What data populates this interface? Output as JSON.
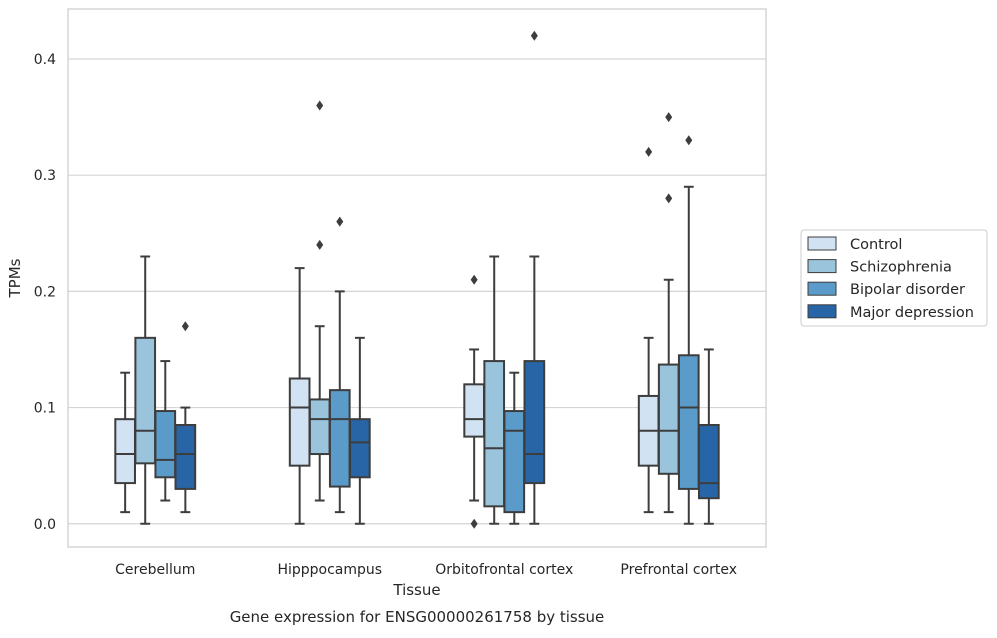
{
  "chart_data": {
    "type": "box",
    "title": "",
    "caption": "Gene expression for ENSG00000261758 by tissue",
    "xlabel": "Tissue",
    "ylabel": "TPMs",
    "ylim": [
      -0.02,
      0.443
    ],
    "yticks": [
      0.0,
      0.1,
      0.2,
      0.3,
      0.4
    ],
    "ytick_labels": [
      "0.0",
      "0.1",
      "0.2",
      "0.3",
      "0.4"
    ],
    "grid": "horizontal",
    "legend_position": "right",
    "categories": [
      "Cerebellum",
      "Hipppocampus",
      "Orbitofrontal cortex",
      "Prefrontal cortex"
    ],
    "series": [
      {
        "name": "Control",
        "color": "#d1e2f2",
        "boxes": [
          {
            "whislo": 0.01,
            "q1": 0.035,
            "med": 0.06,
            "q3": 0.09,
            "whishi": 0.13,
            "fliers": []
          },
          {
            "whislo": 0.0,
            "q1": 0.05,
            "med": 0.1,
            "q3": 0.125,
            "whishi": 0.22,
            "fliers": []
          },
          {
            "whislo": 0.02,
            "q1": 0.075,
            "med": 0.09,
            "q3": 0.12,
            "whishi": 0.15,
            "fliers": [
              0.0,
              0.21
            ]
          },
          {
            "whislo": 0.01,
            "q1": 0.05,
            "med": 0.08,
            "q3": 0.11,
            "whishi": 0.16,
            "fliers": [
              0.32
            ]
          }
        ]
      },
      {
        "name": "Schizophrenia",
        "color": "#9ac3dc",
        "boxes": [
          {
            "whislo": 0.0,
            "q1": 0.052,
            "med": 0.08,
            "q3": 0.16,
            "whishi": 0.23,
            "fliers": []
          },
          {
            "whislo": 0.02,
            "q1": 0.06,
            "med": 0.09,
            "q3": 0.107,
            "whishi": 0.17,
            "fliers": [
              0.24,
              0.36
            ]
          },
          {
            "whislo": 0.0,
            "q1": 0.015,
            "med": 0.065,
            "q3": 0.14,
            "whishi": 0.23,
            "fliers": []
          },
          {
            "whislo": 0.01,
            "q1": 0.043,
            "med": 0.08,
            "q3": 0.137,
            "whishi": 0.21,
            "fliers": [
              0.28,
              0.35
            ]
          }
        ]
      },
      {
        "name": "Bipolar disorder",
        "color": "#5a9bc9",
        "boxes": [
          {
            "whislo": 0.02,
            "q1": 0.04,
            "med": 0.055,
            "q3": 0.097,
            "whishi": 0.14,
            "fliers": []
          },
          {
            "whislo": 0.01,
            "q1": 0.032,
            "med": 0.09,
            "q3": 0.115,
            "whishi": 0.2,
            "fliers": [
              0.26
            ]
          },
          {
            "whislo": 0.0,
            "q1": 0.01,
            "med": 0.08,
            "q3": 0.097,
            "whishi": 0.13,
            "fliers": []
          },
          {
            "whislo": 0.0,
            "q1": 0.03,
            "med": 0.1,
            "q3": 0.145,
            "whishi": 0.29,
            "fliers": [
              0.33
            ]
          }
        ]
      },
      {
        "name": "Major depression",
        "color": "#2765a6",
        "boxes": [
          {
            "whislo": 0.01,
            "q1": 0.03,
            "med": 0.06,
            "q3": 0.085,
            "whishi": 0.1,
            "fliers": [
              0.17
            ]
          },
          {
            "whislo": 0.0,
            "q1": 0.04,
            "med": 0.07,
            "q3": 0.09,
            "whishi": 0.16,
            "fliers": []
          },
          {
            "whislo": 0.0,
            "q1": 0.035,
            "med": 0.06,
            "q3": 0.14,
            "whishi": 0.23,
            "fliers": [
              0.42
            ]
          },
          {
            "whislo": 0.0,
            "q1": 0.022,
            "med": 0.035,
            "q3": 0.085,
            "whishi": 0.15,
            "fliers": []
          }
        ]
      }
    ]
  }
}
